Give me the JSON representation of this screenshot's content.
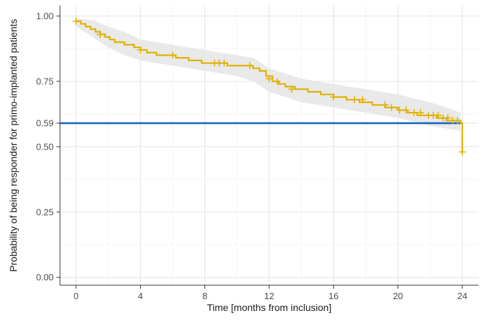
{
  "chart_data": {
    "type": "line",
    "xlabel": "Time [months from inclusion]",
    "ylabel": "Probability of being responder for primo-implanted patients",
    "xlim": [
      -1,
      25
    ],
    "ylim": [
      -0.03,
      1.04
    ],
    "x_ticks": [
      0,
      4,
      8,
      12,
      16,
      20,
      24
    ],
    "x_tick_labels": [
      "0",
      "4",
      "8",
      "12",
      "16",
      "20",
      "24"
    ],
    "y_ticks": [
      0.0,
      0.25,
      0.5,
      0.59,
      0.75,
      1.0
    ],
    "y_tick_labels": [
      "0.00",
      "0.25",
      "0.50",
      "0.59",
      "0.75",
      "1.00"
    ],
    "grid": true,
    "series": [
      {
        "kind": "step",
        "color": "#E0B100",
        "x": [
          0,
          0.3,
          0.6,
          0.9,
          1.2,
          1.5,
          1.8,
          2.1,
          2.4,
          3.0,
          3.6,
          4.0,
          4.4,
          5.0,
          5.6,
          6.2,
          7.0,
          7.8,
          8.6,
          9.4,
          10.2,
          11.0,
          11.4,
          11.8,
          12.2,
          12.6,
          13.0,
          13.6,
          14.4,
          15.2,
          16.0,
          16.8,
          17.6,
          18.4,
          19.2,
          20.0,
          20.6,
          21.2,
          21.8,
          22.4,
          23.0,
          23.5,
          23.9,
          24.0
        ],
        "y": [
          0.98,
          0.97,
          0.96,
          0.95,
          0.94,
          0.93,
          0.92,
          0.91,
          0.9,
          0.89,
          0.88,
          0.87,
          0.86,
          0.85,
          0.85,
          0.84,
          0.83,
          0.82,
          0.82,
          0.81,
          0.81,
          0.8,
          0.79,
          0.77,
          0.75,
          0.74,
          0.73,
          0.72,
          0.71,
          0.7,
          0.69,
          0.68,
          0.67,
          0.66,
          0.65,
          0.64,
          0.63,
          0.62,
          0.62,
          0.61,
          0.6,
          0.6,
          0.59,
          0.48
        ]
      }
    ],
    "confidence_band": {
      "color": "#e8e8e8",
      "x": [
        0,
        1.0,
        2.0,
        3.0,
        4.0,
        6.0,
        8.0,
        10.0,
        11.0,
        12.0,
        13.0,
        14.0,
        16.0,
        18.0,
        20.0,
        22.0,
        23.0,
        23.9
      ],
      "lower": [
        0.96,
        0.92,
        0.88,
        0.85,
        0.83,
        0.81,
        0.79,
        0.77,
        0.75,
        0.71,
        0.69,
        0.67,
        0.65,
        0.63,
        0.61,
        0.58,
        0.57,
        0.56
      ],
      "upper": [
        0.99,
        0.985,
        0.96,
        0.94,
        0.91,
        0.89,
        0.87,
        0.85,
        0.84,
        0.8,
        0.78,
        0.76,
        0.74,
        0.72,
        0.7,
        0.67,
        0.65,
        0.63
      ]
    },
    "censor_marks": {
      "x": [
        0,
        1.5,
        4.0,
        6.0,
        8.6,
        8.9,
        9.2,
        10.8,
        12.0,
        12.5,
        13.4,
        16.0,
        17.3,
        17.8,
        19.2,
        19.6,
        20.1,
        20.5,
        21.0,
        21.4,
        21.9,
        22.2,
        22.5,
        22.8,
        23.1,
        23.4,
        23.7,
        24.0
      ],
      "y": [
        0.98,
        0.93,
        0.87,
        0.85,
        0.82,
        0.82,
        0.82,
        0.81,
        0.76,
        0.75,
        0.72,
        0.69,
        0.68,
        0.68,
        0.66,
        0.65,
        0.64,
        0.64,
        0.63,
        0.63,
        0.62,
        0.62,
        0.62,
        0.61,
        0.61,
        0.6,
        0.6,
        0.48
      ]
    },
    "reference_line": {
      "y": 0.59,
      "color": "#1565C0"
    }
  }
}
